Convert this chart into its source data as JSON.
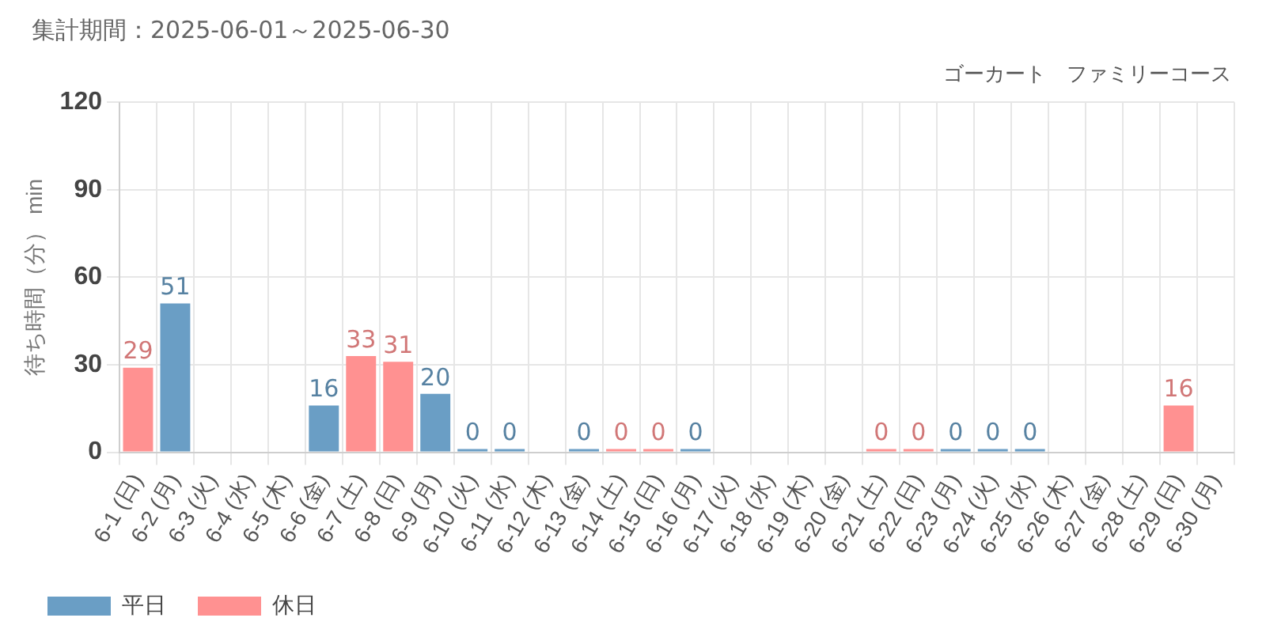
{
  "chart_data": {
    "type": "bar",
    "title": "集計期間：2025-06-01～2025-06-30",
    "subtitle": "ゴーカート　ファミリーコース",
    "ylabel": "待ち時間（分） min",
    "categories": [
      "6-1 (日)",
      "6-2 (月)",
      "6-3 (火)",
      "6-4 (水)",
      "6-5 (木)",
      "6-6 (金)",
      "6-7 (土)",
      "6-8 (日)",
      "6-9 (月)",
      "6-10 (火)",
      "6-11 (水)",
      "6-12 (木)",
      "6-13 (金)",
      "6-14 (土)",
      "6-15 (日)",
      "6-16 (月)",
      "6-17 (火)",
      "6-18 (水)",
      "6-19 (木)",
      "6-20 (金)",
      "6-21 (土)",
      "6-22 (日)",
      "6-23 (月)",
      "6-24 (火)",
      "6-25 (水)",
      "6-26 (木)",
      "6-27 (金)",
      "6-28 (土)",
      "6-29 (日)",
      "6-30 (月)"
    ],
    "series": [
      {
        "name": "平日",
        "color": "#6a9ec5",
        "values": [
          null,
          51,
          null,
          null,
          null,
          16,
          null,
          null,
          20,
          0,
          0,
          null,
          0,
          null,
          null,
          0,
          null,
          null,
          null,
          null,
          null,
          null,
          0,
          0,
          0,
          null,
          null,
          null,
          null,
          null
        ]
      },
      {
        "name": "休日",
        "color": "#ff9191",
        "values": [
          29,
          null,
          null,
          null,
          null,
          null,
          33,
          31,
          null,
          null,
          null,
          null,
          null,
          0,
          0,
          null,
          null,
          null,
          null,
          null,
          0,
          0,
          null,
          null,
          null,
          null,
          null,
          null,
          16,
          null
        ]
      }
    ],
    "ylim": [
      0,
      120
    ],
    "yticks": [
      0,
      30,
      60,
      90,
      120
    ],
    "grid": true,
    "legend": "bottom left",
    "data_labels": true
  }
}
